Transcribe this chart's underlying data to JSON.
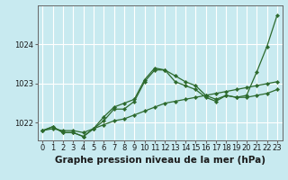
{
  "bg_color": "#c8eaf0",
  "grid_color": "#ffffff",
  "line_color": "#2d6a2d",
  "marker_color": "#2d6a2d",
  "xlabel": "Graphe pression niveau de la mer (hPa)",
  "xlabel_fontsize": 7.5,
  "tick_fontsize": 6.0,
  "ytick_labels": [
    1022,
    1023,
    1024
  ],
  "ylim": [
    1021.55,
    1025.0
  ],
  "xlim": [
    -0.5,
    23.5
  ],
  "xtick_labels": [
    0,
    1,
    2,
    3,
    4,
    5,
    6,
    7,
    8,
    9,
    10,
    11,
    12,
    13,
    14,
    15,
    16,
    17,
    18,
    19,
    20,
    21,
    22,
    23
  ],
  "series": [
    [
      1021.8,
      1021.9,
      1021.75,
      1021.75,
      1021.65,
      1021.85,
      1022.15,
      1022.4,
      1022.5,
      1022.6,
      1023.1,
      1023.4,
      1023.35,
      1023.2,
      1023.05,
      1022.95,
      1022.7,
      1022.6,
      1022.7,
      1022.65,
      1022.7,
      1023.3,
      1023.95,
      1024.75
    ],
    [
      1021.8,
      1021.9,
      1021.75,
      1021.75,
      1021.65,
      1021.85,
      1022.05,
      1022.35,
      1022.35,
      1022.55,
      1023.05,
      1023.35,
      1023.35,
      1023.05,
      1022.95,
      1022.85,
      1022.65,
      1022.55,
      1022.7,
      1022.65,
      1022.65,
      1022.7,
      1022.75,
      1022.85
    ],
    [
      1021.8,
      1021.85,
      1021.8,
      1021.8,
      1021.75,
      1021.85,
      1021.95,
      1022.05,
      1022.1,
      1022.2,
      1022.3,
      1022.4,
      1022.5,
      1022.55,
      1022.6,
      1022.65,
      1022.7,
      1022.75,
      1022.8,
      1022.85,
      1022.9,
      1022.95,
      1023.0,
      1023.05
    ]
  ]
}
